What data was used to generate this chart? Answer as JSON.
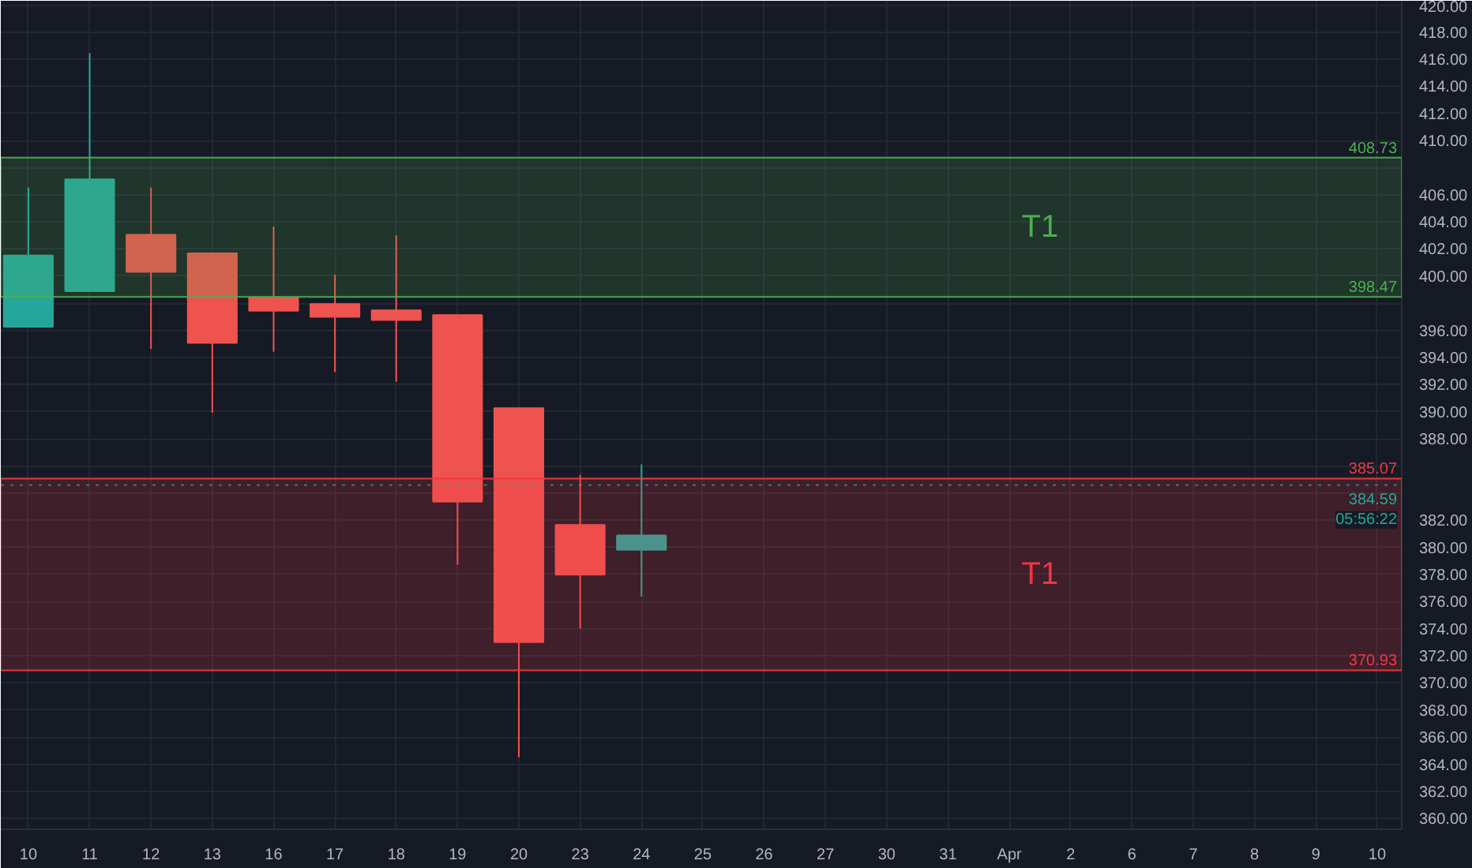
{
  "chart_data": {
    "type": "candlestick",
    "categories": [
      "10",
      "11",
      "12",
      "13",
      "16",
      "17",
      "18",
      "19",
      "20",
      "23",
      "24",
      "25",
      "26",
      "27",
      "30",
      "31",
      "Apr",
      "2",
      "6",
      "7",
      "8",
      "9",
      "10"
    ],
    "ohlc": [
      [
        396.25,
        406.52,
        396.25,
        401.52
      ],
      [
        398.89,
        416.45,
        398.89,
        407.13
      ],
      [
        403.05,
        406.52,
        394.62,
        400.31
      ],
      [
        401.68,
        401.68,
        389.92,
        395.07
      ],
      [
        398.43,
        403.66,
        394.42,
        397.44
      ],
      [
        397.94,
        400.11,
        392.93,
        396.99
      ],
      [
        397.48,
        403.01,
        392.21,
        396.76
      ],
      [
        397.13,
        397.13,
        378.73,
        383.36
      ],
      [
        390.26,
        390.26,
        364.53,
        373.01
      ],
      [
        381.64,
        385.34,
        374.0,
        377.98
      ],
      [
        379.81,
        386.11,
        376.37,
        380.87
      ],
      null,
      null,
      null,
      null,
      null,
      null,
      null,
      null,
      null,
      null,
      null,
      null
    ],
    "ylim": [
      359.2,
      420.3
    ],
    "yticks": [
      {
        "value": 360,
        "label": "360.00"
      },
      {
        "value": 362,
        "label": "362.00"
      },
      {
        "value": 364,
        "label": "364.00"
      },
      {
        "value": 366,
        "label": "366.00"
      },
      {
        "value": 368,
        "label": "368.00"
      },
      {
        "value": 370,
        "label": "370.00"
      },
      {
        "value": 372,
        "label": "372.00"
      },
      {
        "value": 374,
        "label": "374.00"
      },
      {
        "value": 376,
        "label": "376.00"
      },
      {
        "value": 378,
        "label": "378.00"
      },
      {
        "value": 380,
        "label": "380.00"
      },
      {
        "value": 382,
        "label": "382.00"
      },
      {
        "value": 384,
        "label": null
      },
      {
        "value": 386,
        "label": null
      },
      {
        "value": 388,
        "label": "388.00"
      },
      {
        "value": 390,
        "label": "390.00"
      },
      {
        "value": 392,
        "label": "392.00"
      },
      {
        "value": 394,
        "label": "394.00"
      },
      {
        "value": 396,
        "label": "396.00"
      },
      {
        "value": 398,
        "label": null
      },
      {
        "value": 400,
        "label": "400.00"
      },
      {
        "value": 402,
        "label": "402.00"
      },
      {
        "value": 404,
        "label": "404.00"
      },
      {
        "value": 406,
        "label": "406.00"
      },
      {
        "value": 408,
        "label": null
      },
      {
        "value": 410,
        "label": "410.00"
      },
      {
        "value": 412,
        "label": "412.00"
      },
      {
        "value": 414,
        "label": "414.00"
      },
      {
        "value": 416,
        "label": "416.00"
      },
      {
        "value": 418,
        "label": "418.00"
      },
      {
        "value": 420,
        "label": "420.00"
      }
    ],
    "colors": [
      "#26a69a",
      "#26a69a",
      "#ef5350",
      "#ef5350",
      "#ef5350",
      "#ef5350",
      "#ef5350",
      "#ef5350",
      "#ef5350",
      "#ef5350",
      "#26a69a",
      null,
      null,
      null,
      null,
      null,
      null,
      null,
      null,
      null,
      null,
      null,
      null
    ],
    "grid": true,
    "bands": [
      {
        "axis": "y",
        "from": 398.47,
        "to": 408.73,
        "label": "T1",
        "color": "#4caf50"
      },
      {
        "axis": "y",
        "from": 370.93,
        "to": 385.07,
        "label": "T1",
        "color": "#f23645"
      }
    ],
    "ref_lines": [
      {
        "axis": "y",
        "value": 408.73,
        "label": "408.73",
        "color": "#4caf50"
      },
      {
        "axis": "y",
        "value": 398.47,
        "label": "398.47",
        "color": "#4caf50"
      },
      {
        "axis": "y",
        "value": 385.07,
        "label": "385.07",
        "color": "#f23645"
      },
      {
        "axis": "y",
        "value": 384.59,
        "label": "384.59",
        "color": "#26a69a",
        "line_style": "dotted"
      },
      {
        "axis": "y",
        "value": 370.93,
        "label": "370.93",
        "color": "#f23645"
      }
    ],
    "annotations": [
      "05:56:22"
    ]
  }
}
